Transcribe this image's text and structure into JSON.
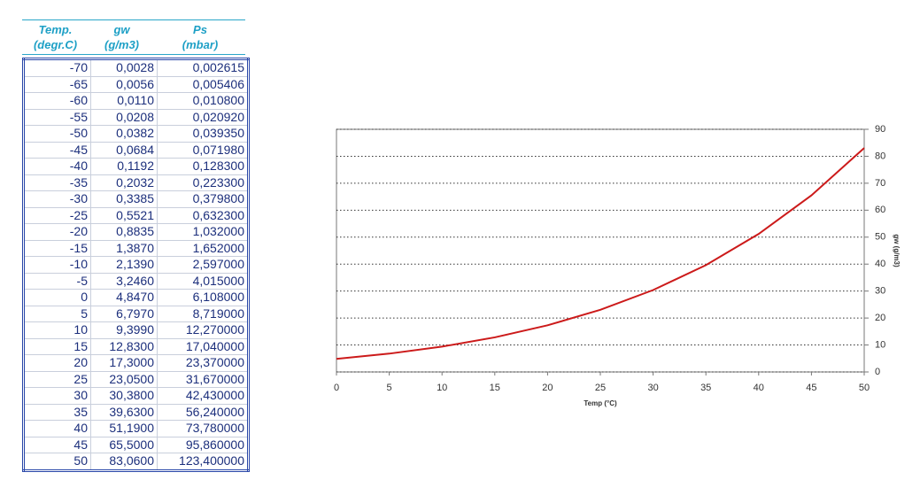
{
  "table": {
    "header": [
      [
        "Temp.",
        "(degr.C)"
      ],
      [
        "gw",
        "(g/m3)"
      ],
      [
        "Ps",
        "(mbar)"
      ]
    ],
    "rows": [
      [
        "-70",
        "0,0028",
        "0,002615"
      ],
      [
        "-65",
        "0,0056",
        "0,005406"
      ],
      [
        "-60",
        "0,0110",
        "0,010800"
      ],
      [
        "-55",
        "0,0208",
        "0,020920"
      ],
      [
        "-50",
        "0,0382",
        "0,039350"
      ],
      [
        "-45",
        "0,0684",
        "0,071980"
      ],
      [
        "-40",
        "0,1192",
        "0,128300"
      ],
      [
        "-35",
        "0,2032",
        "0,223300"
      ],
      [
        "-30",
        "0,3385",
        "0,379800"
      ],
      [
        "-25",
        "0,5521",
        "0,632300"
      ],
      [
        "-20",
        "0,8835",
        "1,032000"
      ],
      [
        "-15",
        "1,3870",
        "1,652000"
      ],
      [
        "-10",
        "2,1390",
        "2,597000"
      ],
      [
        "-5",
        "3,2460",
        "4,015000"
      ],
      [
        "0",
        "4,8470",
        "6,108000"
      ],
      [
        "5",
        "6,7970",
        "8,719000"
      ],
      [
        "10",
        "9,3990",
        "12,270000"
      ],
      [
        "15",
        "12,8300",
        "17,040000"
      ],
      [
        "20",
        "17,3000",
        "23,370000"
      ],
      [
        "25",
        "23,0500",
        "31,670000"
      ],
      [
        "30",
        "30,3800",
        "42,430000"
      ],
      [
        "35",
        "39,6300",
        "56,240000"
      ],
      [
        "40",
        "51,1900",
        "73,780000"
      ],
      [
        "45",
        "65,5000",
        "95,860000"
      ],
      [
        "50",
        "83,0600",
        "123,400000"
      ]
    ]
  },
  "chart_data": {
    "type": "line",
    "x_label": "Temp (°C)",
    "y_label": "gw (g/m3)",
    "x": [
      0,
      5,
      10,
      15,
      20,
      25,
      30,
      35,
      40,
      45,
      50
    ],
    "series": [
      {
        "name": "gw",
        "color": "#cc1a1a",
        "values": [
          4.847,
          6.797,
          9.399,
          12.83,
          17.3,
          23.05,
          30.38,
          39.63,
          51.19,
          65.5,
          83.06
        ]
      }
    ],
    "xlim": [
      0,
      50
    ],
    "xticks": [
      0,
      5,
      10,
      15,
      20,
      25,
      30,
      35,
      40,
      45,
      50
    ],
    "ylim": [
      0,
      90
    ],
    "yticks": [
      0,
      10,
      20,
      30,
      40,
      50,
      60,
      70,
      80,
      90
    ],
    "grid": true
  }
}
